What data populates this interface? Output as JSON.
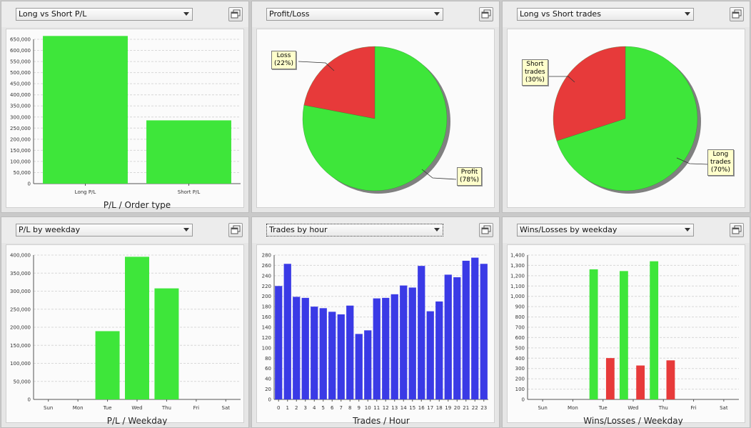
{
  "panels": [
    {
      "select": "Long vs Short P/L",
      "title": "P/L / Order type"
    },
    {
      "select": "Profit/Loss"
    },
    {
      "select": "Long vs Short trades"
    },
    {
      "select": "P/L by weekday",
      "title": "P/L / Weekday"
    },
    {
      "select": "Trades by hour",
      "title": "Trades / Hour"
    },
    {
      "select": "Wins/Losses by weekday",
      "title": "Wins/Losses / Weekday"
    }
  ],
  "colors": {
    "green": "#3ee63a",
    "red": "#e73a3a",
    "blue": "#3a3ae6"
  },
  "chart_data": [
    {
      "type": "bar",
      "title": "P/L / Order type",
      "categories": [
        "Long P/L",
        "Short P/L"
      ],
      "values": [
        665000,
        285000
      ],
      "ylim": [
        0,
        650000
      ],
      "yticks": [
        "0",
        "50,000",
        "100,000",
        "150,000",
        "200,000",
        "250,000",
        "300,000",
        "350,000",
        "400,000",
        "450,000",
        "500,000",
        "550,000",
        "600,000",
        "650,000"
      ],
      "grid": true
    },
    {
      "type": "pie",
      "slices": [
        {
          "label": "Profit\n(78%)",
          "value": 78,
          "color": "#3ee63a"
        },
        {
          "label": "Loss\n(22%)",
          "value": 22,
          "color": "#e73a3a"
        }
      ]
    },
    {
      "type": "pie",
      "slices": [
        {
          "label": "Long\ntrades\n(70%)",
          "value": 70,
          "color": "#3ee63a"
        },
        {
          "label": "Short\ntrades\n(30%)",
          "value": 30,
          "color": "#e73a3a"
        }
      ]
    },
    {
      "type": "bar",
      "title": "P/L / Weekday",
      "categories": [
        "Sun",
        "Mon",
        "Tue",
        "Wed",
        "Thu",
        "Fri",
        "Sat"
      ],
      "values": [
        0,
        0,
        201000,
        420000,
        327000,
        0,
        0
      ],
      "ylim": [
        0,
        425000
      ],
      "yticks": [
        "0",
        "50,000",
        "100,000",
        "150,000",
        "200,000",
        "250,000",
        "300,000",
        "350,000",
        "400,000"
      ],
      "grid": true
    },
    {
      "type": "bar",
      "title": "Trades / Hour",
      "categories": [
        "0",
        "1",
        "2",
        "3",
        "4",
        "5",
        "6",
        "7",
        "8",
        "9",
        "10",
        "11",
        "12",
        "13",
        "14",
        "15",
        "16",
        "17",
        "18",
        "19",
        "20",
        "21",
        "22",
        "23"
      ],
      "values": [
        220,
        263,
        199,
        197,
        180,
        177,
        170,
        165,
        182,
        127,
        134,
        196,
        197,
        204,
        221,
        217,
        259,
        171,
        190,
        242,
        237,
        269,
        275,
        263
      ],
      "ylim": [
        0,
        280
      ],
      "yticks": [
        "0",
        "20",
        "40",
        "60",
        "80",
        "100",
        "120",
        "140",
        "160",
        "180",
        "200",
        "220",
        "240",
        "260",
        "280"
      ],
      "grid": true
    },
    {
      "type": "bar",
      "title": "Wins/Losses / Weekday",
      "categories": [
        "Sun",
        "Mon",
        "Tue",
        "Wed",
        "Thu",
        "Fri",
        "Sat"
      ],
      "series": [
        {
          "values": [
            0,
            0,
            1262,
            1245,
            1340,
            0,
            0
          ],
          "color": "#3ee63a"
        },
        {
          "values": [
            0,
            0,
            401,
            329,
            379,
            0,
            0
          ],
          "color": "#e73a3a"
        }
      ],
      "ylim": [
        0,
        1400
      ],
      "yticks": [
        "0",
        "100",
        "200",
        "300",
        "400",
        "500",
        "600",
        "700",
        "800",
        "900",
        "1,000",
        "1,100",
        "1,200",
        "1,300",
        "1,400"
      ],
      "grid": true
    }
  ]
}
